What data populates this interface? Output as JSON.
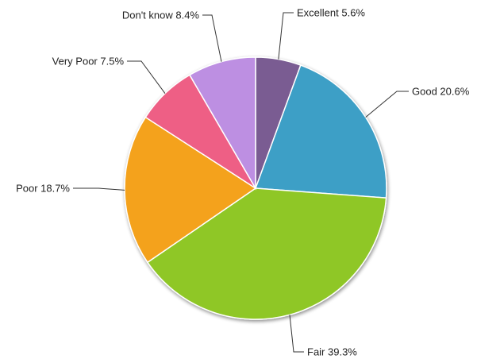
{
  "chart_data": {
    "type": "pie",
    "title": "",
    "slices": [
      {
        "label": "Excellent 5.6%",
        "name": "Excellent",
        "value": 5.6,
        "color": "#7a5c92"
      },
      {
        "label": "Good 20.6%",
        "name": "Good",
        "value": 20.6,
        "color": "#3d9fc6"
      },
      {
        "label": "Fair 39.3%",
        "name": "Fair",
        "value": 39.3,
        "color": "#8fc725"
      },
      {
        "label": "Poor 18.7%",
        "name": "Poor",
        "value": 18.7,
        "color": "#f4a21c"
      },
      {
        "label": "Very Poor 7.5%",
        "name": "Very Poor",
        "value": 7.5,
        "color": "#ee5f85"
      },
      {
        "label": "Don't know 8.4%",
        "name": "Don't know",
        "value": 8.4,
        "color": "#bd8fe2"
      }
    ],
    "legend": "none",
    "labels": "outside with leader lines"
  }
}
